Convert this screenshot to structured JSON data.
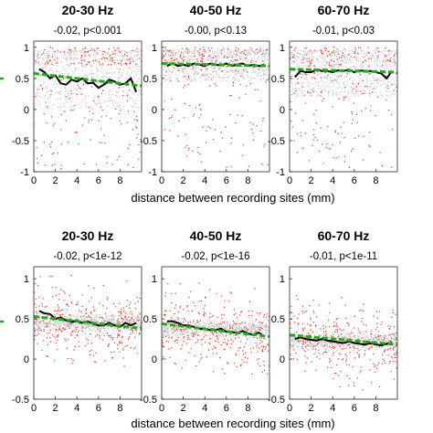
{
  "chart_data": {
    "type": "scatter",
    "shared_xlabel": "distance between recording sites (mm)",
    "xlim": [
      0,
      10
    ],
    "x_ticks": [
      0,
      2,
      4,
      6,
      8
    ],
    "colors": {
      "fit_line": "#1faa1f",
      "mean_line": "#000000",
      "points": "#e8402a",
      "band": "#c8c8c8"
    },
    "panels": [
      {
        "title": "20-30 Hz",
        "subtitle": "-0.02, p<0.001",
        "ylim": [
          -1,
          1.1
        ],
        "y_ticks": [
          -1,
          -0.5,
          0,
          0.5,
          1
        ],
        "fit": {
          "x": [
            0,
            10
          ],
          "y": [
            0.58,
            0.38
          ]
        },
        "mean": {
          "x": [
            0.5,
            1,
            1.5,
            2,
            2.5,
            3,
            3.5,
            4,
            4.5,
            5,
            5.5,
            6,
            6.5,
            7,
            7.5,
            8,
            8.5,
            9,
            9.5
          ],
          "y": [
            0.65,
            0.6,
            0.5,
            0.55,
            0.42,
            0.4,
            0.48,
            0.45,
            0.5,
            0.42,
            0.43,
            0.35,
            0.4,
            0.48,
            0.45,
            0.4,
            0.42,
            0.5,
            0.28
          ]
        },
        "band": {
          "upper": 0.95,
          "lower": 0.0
        }
      },
      {
        "title": "40-50 Hz",
        "subtitle": "-0.00, p<0.13",
        "ylim": [
          -1,
          1.1
        ],
        "y_ticks": [
          -1,
          -0.5,
          0,
          0.5,
          1
        ],
        "fit": {
          "x": [
            0,
            10
          ],
          "y": [
            0.74,
            0.7
          ]
        },
        "mean": {
          "x": [
            0.5,
            1,
            1.5,
            2,
            2.5,
            3,
            3.5,
            4,
            4.5,
            5,
            5.5,
            6,
            6.5,
            7,
            7.5,
            8,
            8.5,
            9,
            9.5
          ],
          "y": [
            0.7,
            0.74,
            0.7,
            0.72,
            0.7,
            0.74,
            0.72,
            0.7,
            0.74,
            0.72,
            0.71,
            0.74,
            0.7,
            0.72,
            0.74,
            0.7,
            0.72,
            0.7,
            0.72
          ]
        },
        "band": {
          "upper": 0.96,
          "lower": 0.45
        }
      },
      {
        "title": "60-70 Hz",
        "subtitle": "-0.01, p<0.03",
        "ylim": [
          -1,
          1.1
        ],
        "y_ticks": [
          -1,
          -0.5,
          0,
          0.5,
          1
        ],
        "fit": {
          "x": [
            0,
            10
          ],
          "y": [
            0.65,
            0.6
          ]
        },
        "mean": {
          "x": [
            0.5,
            1,
            1.5,
            2,
            2.5,
            3,
            3.5,
            4,
            4.5,
            5,
            5.5,
            6,
            6.5,
            7,
            7.5,
            8,
            8.5,
            9,
            9.5
          ],
          "y": [
            0.52,
            0.62,
            0.6,
            0.6,
            0.64,
            0.62,
            0.62,
            0.6,
            0.63,
            0.62,
            0.64,
            0.6,
            0.63,
            0.62,
            0.62,
            0.6,
            0.58,
            0.5,
            0.62
          ]
        },
        "band": {
          "upper": 0.95,
          "lower": 0.2
        }
      },
      {
        "title": "20-30 Hz",
        "subtitle": "-0.02, p<1e-12",
        "ylim": [
          -0.5,
          1.15
        ],
        "y_ticks": [
          -0.5,
          0,
          0.5,
          1
        ],
        "fit": {
          "x": [
            0,
            10
          ],
          "y": [
            0.53,
            0.38
          ]
        },
        "mean": {
          "x": [
            0.5,
            1,
            1.5,
            2,
            2.5,
            3,
            3.5,
            4,
            4.5,
            5,
            5.5,
            6,
            6.5,
            7,
            7.5,
            8,
            8.5,
            9,
            9.5
          ],
          "y": [
            0.6,
            0.57,
            0.56,
            0.5,
            0.52,
            0.48,
            0.46,
            0.48,
            0.45,
            0.47,
            0.44,
            0.42,
            0.42,
            0.45,
            0.42,
            0.4,
            0.45,
            0.42,
            0.45
          ]
        },
        "band": {
          "upper": 0.7,
          "lower": 0.2
        }
      },
      {
        "title": "40-50 Hz",
        "subtitle": "-0.02, p<1e-16",
        "ylim": [
          -0.5,
          1.15
        ],
        "y_ticks": [
          -0.5,
          0,
          0.5,
          1
        ],
        "fit": {
          "x": [
            0,
            10
          ],
          "y": [
            0.44,
            0.28
          ]
        },
        "mean": {
          "x": [
            0.5,
            1,
            1.5,
            2,
            2.5,
            3,
            3.5,
            4,
            4.5,
            5,
            5.5,
            6,
            6.5,
            7,
            7.5,
            8,
            8.5,
            9,
            9.5
          ],
          "y": [
            0.47,
            0.47,
            0.45,
            0.42,
            0.42,
            0.4,
            0.38,
            0.38,
            0.36,
            0.36,
            0.38,
            0.34,
            0.34,
            0.32,
            0.35,
            0.32,
            0.3,
            0.33,
            0.28
          ]
        },
        "band": {
          "upper": 0.6,
          "lower": 0.15
        }
      },
      {
        "title": "60-70 Hz",
        "subtitle": "-0.01, p<1e-11",
        "ylim": [
          -0.5,
          1.15
        ],
        "y_ticks": [
          -0.5,
          0,
          0.5,
          1
        ],
        "fit": {
          "x": [
            0,
            10
          ],
          "y": [
            0.3,
            0.18
          ]
        },
        "mean": {
          "x": [
            0.5,
            1,
            1.5,
            2,
            2.5,
            3,
            3.5,
            4,
            4.5,
            5,
            5.5,
            6,
            6.5,
            7,
            7.5,
            8,
            8.5,
            9,
            9.5
          ],
          "y": [
            0.25,
            0.27,
            0.25,
            0.24,
            0.23,
            0.25,
            0.23,
            0.22,
            0.21,
            0.2,
            0.22,
            0.2,
            0.19,
            0.18,
            0.2,
            0.18,
            0.17,
            0.19,
            0.2
          ]
        },
        "band": {
          "upper": 0.45,
          "lower": 0.0
        }
      }
    ]
  }
}
